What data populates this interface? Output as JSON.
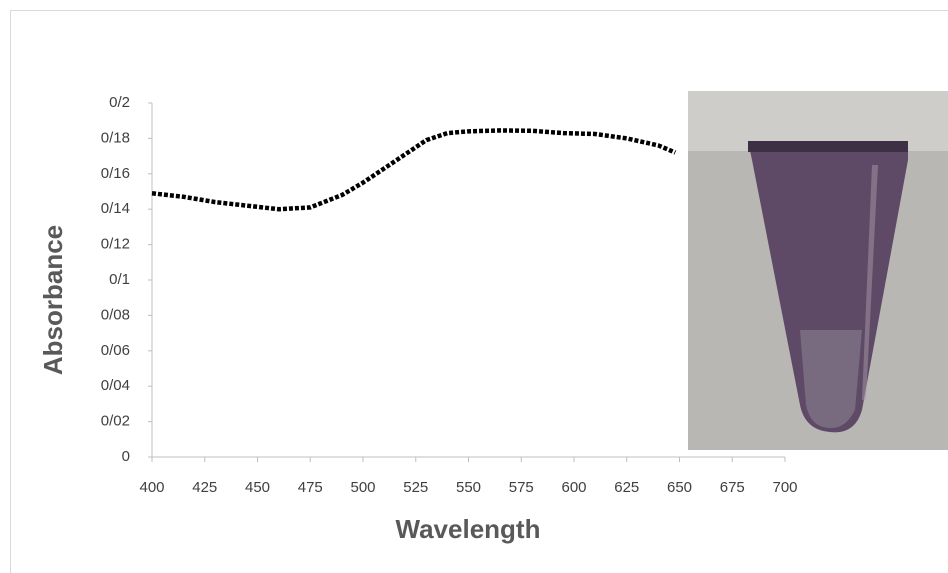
{
  "chart_data": {
    "type": "line",
    "x": [
      400,
      415,
      430,
      445,
      460,
      475,
      490,
      500,
      510,
      520,
      530,
      540,
      550,
      565,
      580,
      595,
      610,
      625,
      640,
      648
    ],
    "series": [
      {
        "color": "#000000",
        "values": [
          0.149,
          0.147,
          0.144,
          0.142,
          0.14,
          0.141,
          0.148,
          0.155,
          0.163,
          0.171,
          0.179,
          0.183,
          0.184,
          0.1845,
          0.1843,
          0.183,
          0.1825,
          0.18,
          0.176,
          0.172
        ]
      }
    ],
    "xlabel": "Wavelength",
    "ylabel": "Absorbance",
    "xlim": [
      400,
      700
    ],
    "xticks": [
      400,
      425,
      450,
      475,
      500,
      525,
      550,
      575,
      600,
      625,
      650,
      675,
      700
    ],
    "ylim": [
      0,
      0.2
    ],
    "yticks": [
      0,
      {
        "value": 0.02,
        "label": "0/02"
      },
      {
        "value": 0.04,
        "label": "0/04"
      },
      {
        "value": 0.06,
        "label": "0/06"
      },
      {
        "value": 0.08,
        "label": "0/08"
      },
      {
        "value": 0.1,
        "label": "0/1"
      },
      {
        "value": 0.12,
        "label": "0/12"
      },
      {
        "value": 0.14,
        "label": "0/14"
      },
      {
        "value": 0.16,
        "label": "0/16"
      },
      {
        "value": 0.18,
        "label": "0/18"
      },
      {
        "value": 0.2,
        "label": "0/2"
      }
    ],
    "grid": false
  }
}
